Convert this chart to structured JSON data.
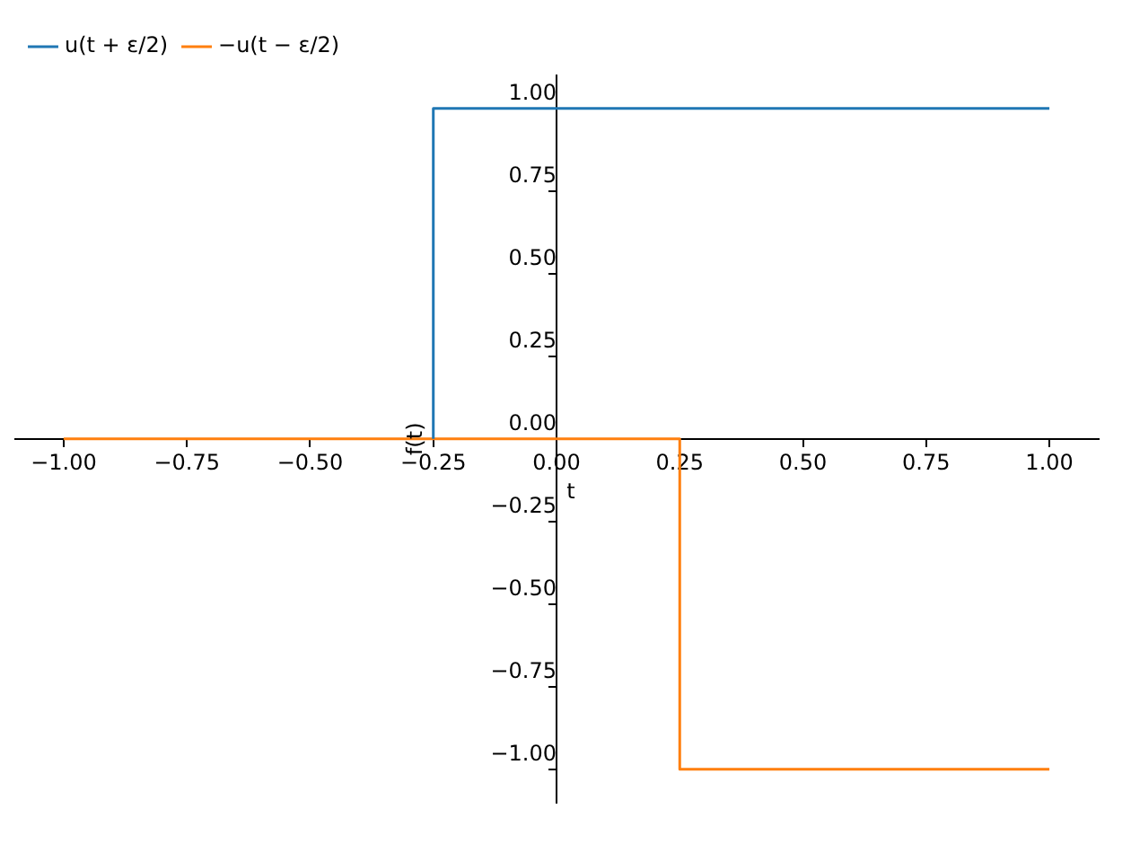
{
  "chart_data": {
    "type": "line",
    "xlabel": "t",
    "ylabel": "f(t)",
    "xlim": [
      -1.1,
      1.1
    ],
    "ylim": [
      -1.1,
      1.1
    ],
    "xticks": [
      {
        "value": -1,
        "label": "−1.00"
      },
      {
        "value": -0.75,
        "label": "−0.75"
      },
      {
        "value": -0.5,
        "label": "−0.50"
      },
      {
        "value": -0.25,
        "label": "−0.25"
      },
      {
        "value": 0,
        "label": "0.00"
      },
      {
        "value": 0.25,
        "label": "0.25"
      },
      {
        "value": 0.5,
        "label": "0.50"
      },
      {
        "value": 0.75,
        "label": "0.75"
      },
      {
        "value": 1,
        "label": "1.00"
      }
    ],
    "yticks": [
      {
        "value": -1,
        "label": "−1.00"
      },
      {
        "value": -0.75,
        "label": "−0.75"
      },
      {
        "value": -0.5,
        "label": "−0.50"
      },
      {
        "value": -0.25,
        "label": "−0.25"
      },
      {
        "value": 0,
        "label": "0.00"
      },
      {
        "value": 0.25,
        "label": "0.25"
      },
      {
        "value": 0.5,
        "label": "0.50"
      },
      {
        "value": 0.75,
        "label": "0.75"
      },
      {
        "value": 1,
        "label": "1.00"
      }
    ],
    "series": [
      {
        "name": "u(t + ε/2)",
        "color": "#1f77b4",
        "x": [
          -0.25,
          -0.25,
          1
        ],
        "values": [
          0,
          1,
          1
        ]
      },
      {
        "name": "−u(t − ε/2)",
        "color": "#ff7f0e",
        "x": [
          -1,
          0.25,
          0.25,
          1
        ],
        "values": [
          0,
          0,
          -1,
          -1
        ]
      }
    ],
    "legend": "top left",
    "grid": false,
    "marker": "none",
    "line_style": "solid"
  }
}
